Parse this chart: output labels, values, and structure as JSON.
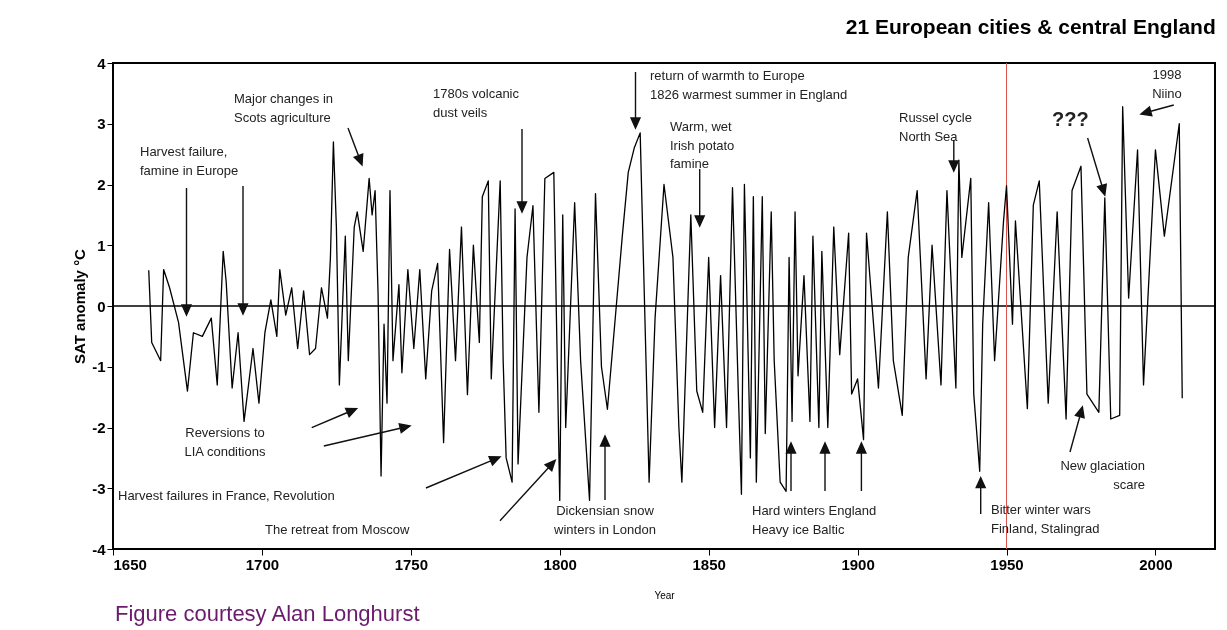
{
  "chart_data": {
    "type": "line",
    "title": "21 European cities & central England",
    "xlabel": "Year",
    "ylabel": "SAT anomaly °C",
    "color": "#000000",
    "x": [
      1662,
      1663,
      1666,
      1667,
      1669,
      1672,
      1675,
      1677,
      1680,
      1683,
      1685,
      1687,
      1688,
      1690,
      1692,
      1694,
      1697,
      1699,
      1701,
      1703,
      1705,
      1706,
      1708,
      1710,
      1712,
      1714,
      1716,
      1718,
      1720,
      1722,
      1723,
      1724,
      1725,
      1726,
      1728,
      1729,
      1731,
      1732,
      1734,
      1736,
      1737,
      1738,
      1739,
      1740,
      1741,
      1742,
      1743,
      1744,
      1746,
      1747,
      1749,
      1751,
      1753,
      1755,
      1757,
      1759,
      1761,
      1763,
      1765,
      1767,
      1769,
      1771,
      1773,
      1774,
      1776,
      1777,
      1780,
      1781,
      1782,
      1784,
      1785,
      1786,
      1789,
      1791,
      1793,
      1795,
      1798,
      1800,
      1801,
      1802,
      1805,
      1807,
      1810,
      1812,
      1814,
      1816,
      1821,
      1823,
      1825,
      1827,
      1830,
      1832,
      1835,
      1838,
      1840,
      1841,
      1844,
      1846,
      1848,
      1850,
      1852,
      1854,
      1856,
      1858,
      1860,
      1861,
      1862,
      1864,
      1865,
      1866,
      1868,
      1869,
      1871,
      1872,
      1874,
      1876,
      1877,
      1878,
      1879,
      1880,
      1882,
      1884,
      1885,
      1887,
      1888,
      1890,
      1892,
      1894,
      1897,
      1898,
      1900,
      1902,
      1903,
      1907,
      1910,
      1912,
      1915,
      1917,
      1920,
      1923,
      1925,
      1928,
      1930,
      1933,
      1934,
      1935,
      1938,
      1939,
      1941,
      1942,
      1944,
      1946,
      1949,
      1950,
      1952,
      1953,
      1957,
      1959,
      1961,
      1964,
      1967,
      1970,
      1972,
      1975,
      1977,
      1981,
      1983,
      1985,
      1988,
      1989,
      1991,
      1994,
      1996,
      2000,
      2003,
      2008,
      2009
    ],
    "values": [
      0.59,
      -0.6,
      -0.9,
      0.6,
      0.3,
      -0.27,
      -1.4,
      -0.44,
      -0.5,
      -0.2,
      -1.3,
      0.9,
      0.4,
      -1.35,
      -0.44,
      -1.9,
      -0.7,
      -1.6,
      -0.44,
      0.1,
      -0.5,
      0.6,
      -0.15,
      0.3,
      -0.7,
      0.25,
      -0.8,
      -0.7,
      0.3,
      -0.2,
      0.8,
      2.7,
      1.3,
      -1.3,
      1.15,
      -0.9,
      1.3,
      1.55,
      0.9,
      2.1,
      1.5,
      1.9,
      0.2,
      -2.8,
      -0.3,
      -1.6,
      1.9,
      -0.9,
      0.35,
      -1.1,
      0.6,
      -0.7,
      0.6,
      -1.2,
      0.25,
      0.7,
      -2.25,
      0.93,
      -0.9,
      1.3,
      -1.46,
      1.0,
      -0.6,
      1.8,
      2.06,
      -1.2,
      2.06,
      -0.9,
      -2.5,
      -2.9,
      1.6,
      -2.6,
      0.8,
      1.65,
      -1.75,
      2.1,
      2.2,
      -3.2,
      1.5,
      -2.0,
      1.7,
      -0.9,
      -3.2,
      1.85,
      -1.0,
      -1.7,
      1.15,
      2.2,
      2.6,
      2.85,
      -2.9,
      -0.2,
      2.0,
      0.8,
      -2.0,
      -2.9,
      1.5,
      -1.4,
      -1.75,
      0.8,
      -2.0,
      0.5,
      -2.0,
      1.95,
      -1.5,
      -3.1,
      2.0,
      -2.5,
      1.8,
      -2.9,
      1.8,
      -2.1,
      1.55,
      -0.9,
      -2.9,
      -3.05,
      0.8,
      -1.9,
      1.55,
      -1.15,
      0.5,
      -1.9,
      1.15,
      -2.0,
      0.9,
      -2.0,
      1.3,
      -0.8,
      1.2,
      -1.45,
      -1.2,
      -2.2,
      1.2,
      -1.35,
      1.55,
      -0.9,
      -1.8,
      0.8,
      1.9,
      -1.2,
      1.0,
      -1.3,
      1.9,
      -1.35,
      2.4,
      0.8,
      2.1,
      -1.45,
      -2.72,
      -0.3,
      1.7,
      -0.9,
      1.4,
      1.98,
      -0.3,
      1.4,
      -1.69,
      1.66,
      2.06,
      -1.6,
      1.55,
      -1.86,
      1.9,
      2.3,
      -1.45,
      -1.75,
      1.78,
      -1.86,
      -1.8,
      3.28,
      0.13,
      2.57,
      -1.3,
      2.57,
      1.15,
      3.0,
      -1.52
    ],
    "xlim": [
      1650,
      2020
    ],
    "xticks": [
      1650,
      1700,
      1750,
      1800,
      1850,
      1900,
      1950,
      2000
    ],
    "ylim": [
      -4,
      4
    ],
    "yticks": [
      -4,
      -3,
      -2,
      -1,
      0,
      1,
      2,
      3,
      4
    ],
    "ref_lines": [
      {
        "axis": "y",
        "value": 0,
        "color": "#000000"
      },
      {
        "axis": "x",
        "value": 1950,
        "color": "#d9534f"
      }
    ],
    "annotations": [
      "Harvest failure,\nfamine in Europe",
      "Major changes in\nScots agriculture",
      "1780s volcanic\ndust veils",
      "return of warmth to Europe\n1826 warmest summer in England",
      "Warm, wet\nIrish potato\nfamine",
      "Russel cycle\nNorth Sea",
      "???",
      "1998\nNiino",
      "Reversions to\nLIA conditions",
      "Harvest failures in France, Revolution",
      "The retreat from Moscow",
      "Dickensian snow\nwinters in London",
      "Hard winters England\nHeavy ice Baltic",
      "New glaciation\nscare",
      "Bitter winter wars\nFinland, Stalingrad",
      "Figure courtesy Alan Longhurst"
    ]
  }
}
